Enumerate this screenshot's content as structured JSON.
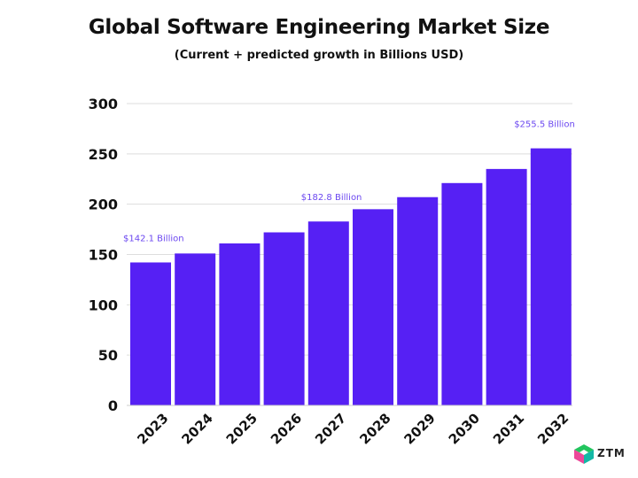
{
  "title": "Global Software Engineering Market Size",
  "subtitle": "(Current + predicted growth in Billions USD)",
  "logo": {
    "text": "ZTM",
    "icon": "ztm-logo-icon"
  },
  "colors": {
    "bar": "#5620F4",
    "annotation": "#6B47F0",
    "grid": "#DDDDDD",
    "text": "#111111"
  },
  "chart_data": {
    "type": "bar",
    "title": "Global Software Engineering Market Size",
    "subtitle": "(Current + predicted growth in Billions USD)",
    "categories": [
      "2023",
      "2024",
      "2025",
      "2026",
      "2027",
      "2028",
      "2029",
      "2030",
      "2031",
      "2032"
    ],
    "values": [
      142.1,
      151,
      161,
      172,
      182.8,
      195,
      207,
      221,
      235,
      255.5
    ],
    "ylim": [
      0,
      300
    ],
    "yticks": [
      0,
      50,
      100,
      150,
      200,
      250,
      300
    ],
    "grid": true,
    "annotations": [
      {
        "category": "2023",
        "text": "$142.1 Billion"
      },
      {
        "category": "2027",
        "text": "$182.8 Billion"
      },
      {
        "category": "2032",
        "text": "$255.5 Billion"
      }
    ]
  }
}
